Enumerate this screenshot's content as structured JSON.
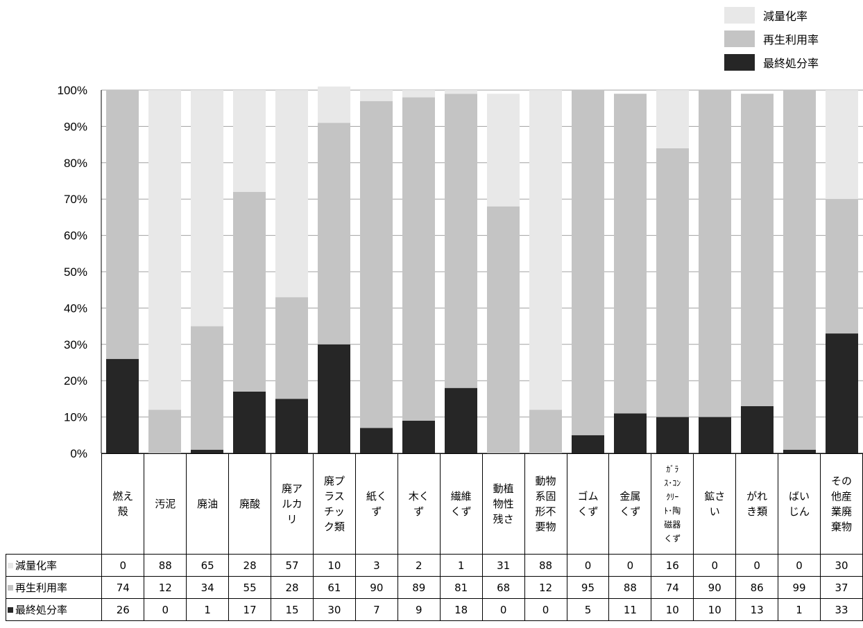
{
  "colors": {
    "reduction": "#e8e8e8",
    "recycling": "#c4c4c4",
    "final": "#262626",
    "grid": "#a0a0a0"
  },
  "legend": [
    {
      "label": "減量化率",
      "color": "#e8e8e8"
    },
    {
      "label": "再生利用率",
      "color": "#c4c4c4"
    },
    {
      "label": "最終処分率",
      "color": "#262626"
    }
  ],
  "chart_data": {
    "type": "bar",
    "stacked": true,
    "ylim": [
      0,
      100
    ],
    "y_ticks": [
      "0%",
      "10%",
      "20%",
      "30%",
      "40%",
      "50%",
      "60%",
      "70%",
      "80%",
      "90%",
      "100%"
    ],
    "grid": true,
    "legend_position": "top-right",
    "categories": [
      "燃え殻",
      "汚泥",
      "廃油",
      "廃酸",
      "廃アルカリ",
      "廃プラスチック類",
      "紙くず",
      "木くず",
      "繊維くず",
      "動植物性残さ",
      "動物系固形不要物",
      "ゴムくず",
      "金属くず",
      "ｶﾞﾗｽ･ｺﾝｸﾘｰﾄ･陶磁器くず",
      "鉱さい",
      "がれき類",
      "ばいじん",
      "その他産業廃棄物"
    ],
    "series": [
      {
        "name": "減量化率",
        "values": [
          0,
          88,
          65,
          28,
          57,
          10,
          3,
          2,
          1,
          31,
          88,
          0,
          0,
          16,
          0,
          0,
          0,
          30
        ]
      },
      {
        "name": "再生利用率",
        "values": [
          74,
          12,
          34,
          55,
          28,
          61,
          90,
          89,
          81,
          68,
          12,
          95,
          88,
          74,
          90,
          86,
          99,
          37
        ]
      },
      {
        "name": "最終処分率",
        "values": [
          26,
          0,
          1,
          17,
          15,
          30,
          7,
          9,
          18,
          0,
          0,
          5,
          11,
          10,
          10,
          13,
          1,
          33
        ]
      }
    ]
  }
}
